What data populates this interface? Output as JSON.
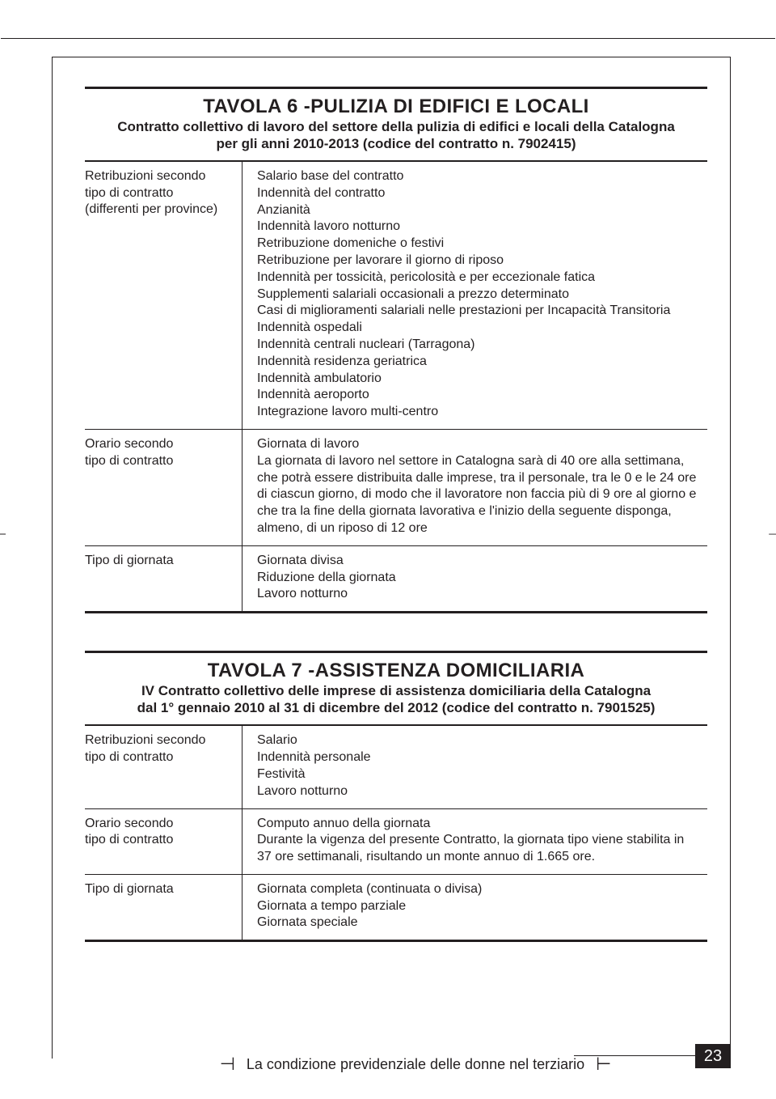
{
  "page": {
    "footer_text": "La condizione previdenziale delle donne nel terziario",
    "page_number": "23"
  },
  "tables": [
    {
      "title": "TAVOLA 6 -PULIZIA DI EDIFICI E LOCALI",
      "subtitle": "Contratto collettivo di lavoro del settore della pulizia di edifici e locali della Catalogna\nper gli anni 2010-2013 (codice del contratto n. 7902415)",
      "rows": [
        {
          "left": "Retribuzioni secondo\ntipo di contratto\n(differenti per province)",
          "right": "Salario base del contratto\nIndennità del contratto\nAnzianità\nIndennità lavoro notturno\nRetribuzione domeniche o festivi\nRetribuzione per lavorare il giorno di riposo\nIndennità per tossicità, pericolosità e per eccezionale fatica\nSupplementi salariali occasionali a prezzo determinato\nCasi di miglioramenti salariali nelle prestazioni per Incapacità Transitoria\nIndennità ospedali\nIndennità centrali nucleari (Tarragona)\nIndennità residenza geriatrica\nIndennità ambulatorio\nIndennità aeroporto\nIntegrazione lavoro multi-centro"
        },
        {
          "left": "Orario secondo\ntipo di contratto",
          "right": "Giornata di lavoro\nLa giornata di lavoro nel settore in Catalogna sarà di 40 ore alla settimana, che potrà essere distribuita dalle imprese, tra il personale, tra le 0 e le 24 ore di ciascun giorno, di modo che il lavoratore non faccia più di 9 ore al giorno e che tra la fine della giornata lavorativa e l'inizio della seguente disponga, almeno, di un riposo di 12 ore"
        },
        {
          "left": "Tipo di giornata",
          "right": "Giornata divisa\nRiduzione della giornata\nLavoro notturno"
        }
      ]
    },
    {
      "title": "TAVOLA 7 -ASSISTENZA DOMICILIARIA",
      "subtitle": "IV Contratto collettivo delle imprese di assistenza domiciliaria della Catalogna\ndal 1° gennaio 2010 al 31 di dicembre del 2012 (codice del contratto n. 7901525)",
      "rows": [
        {
          "left": "Retribuzioni secondo\ntipo di contratto",
          "right": "Salario\nIndennità personale\nFestività\nLavoro notturno"
        },
        {
          "left": "Orario secondo\ntipo di contratto",
          "right": "Computo annuo della giornata\nDurante la vigenza del presente Contratto, la giornata tipo viene stabilita in 37 ore settimanali, risultando un monte annuo di 1.665 ore."
        },
        {
          "left": "Tipo di giornata",
          "right": "Giornata completa (continuata o divisa)\nGiornata a tempo parziale\nGiornata speciale"
        }
      ]
    }
  ]
}
